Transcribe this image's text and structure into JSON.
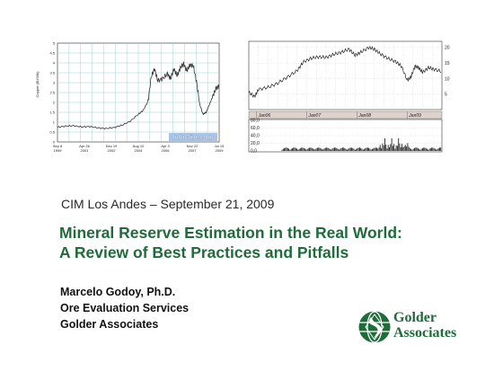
{
  "charts": {
    "left": {
      "ylabel": "Copper ($US/lb)",
      "y_ticks": [
        "0",
        "0.5",
        "1",
        "1.5",
        "2",
        "2.5",
        "3",
        "3.5",
        "4",
        "4.5",
        "5"
      ],
      "x_ticks": [
        [
          "Sep 8",
          "1999"
        ],
        [
          "Apr 26",
          "2001"
        ],
        [
          "Dec 19",
          "2002"
        ],
        [
          "Aug 10",
          "2004"
        ],
        [
          "Apr 3",
          "2006"
        ],
        [
          "Nov 22",
          "2007"
        ],
        [
          "Jul 15",
          "2009"
        ]
      ],
      "watermark": "InfoMine.com"
    },
    "right": {
      "y_ticks": [
        "20",
        "15",
        "10",
        "5"
      ],
      "period_labels": [
        "Jan06",
        "Jan07",
        "Jan08",
        "Jan09"
      ],
      "volume_ticks": [
        "80,0",
        "60,0",
        "40,0",
        "20,0",
        "0,0"
      ],
      "volume_label": "millions"
    }
  },
  "event_line": "CIM Los Andes – September 21, 2009",
  "title_lines": [
    "Mineral Reserve Estimation in the Real World:",
    "A Review of Best Practices and Pitfalls"
  ],
  "author": {
    "name": "Marcelo Godoy, Ph.D.",
    "department": "Ore Evaluation Services",
    "company": "Golder Associates"
  },
  "logo": {
    "line1": "Golder",
    "line2": "Associates"
  },
  "colors": {
    "title": "#1f6b3a",
    "logo": "#1f6b3a",
    "chart_grid": "#9fd0d6",
    "price_line": "#3a3a3a"
  }
}
